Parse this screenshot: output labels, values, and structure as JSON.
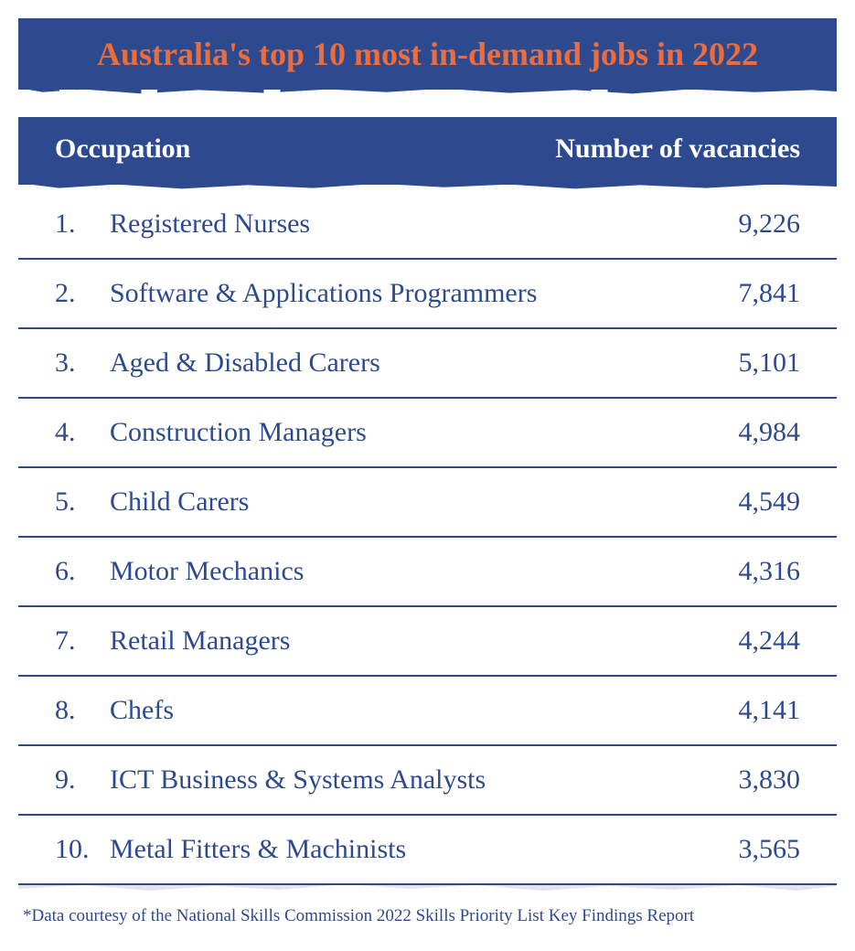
{
  "title": "Australia's top 10 most in-demand jobs in 2022",
  "colors": {
    "banner_bg": "#2e4a8f",
    "title_text": "#ed6c3c",
    "header_text": "#ffffff",
    "body_text": "#2e4a8f",
    "row_border": "#2e4a8f",
    "page_bg": "#ffffff"
  },
  "typography": {
    "title_fontsize": 36,
    "header_fontsize": 30,
    "row_fontsize": 30,
    "footnote_fontsize": 19,
    "font_family": "Georgia / serif"
  },
  "table": {
    "type": "table",
    "columns": [
      "Occupation",
      "Number of vacancies"
    ],
    "header": {
      "occupation_label": "Occupation",
      "vacancies_label": "Number of vacancies"
    },
    "rows": [
      {
        "rank": "1.",
        "occupation": "Registered Nurses",
        "vacancies": "9,226"
      },
      {
        "rank": "2.",
        "occupation": "Software & Applications Programmers",
        "vacancies": "7,841"
      },
      {
        "rank": "3.",
        "occupation": "Aged & Disabled Carers",
        "vacancies": "5,101"
      },
      {
        "rank": "4.",
        "occupation": "Construction Managers",
        "vacancies": "4,984"
      },
      {
        "rank": "5.",
        "occupation": "Child Carers",
        "vacancies": "4,549"
      },
      {
        "rank": "6.",
        "occupation": "Motor Mechanics",
        "vacancies": "4,316"
      },
      {
        "rank": "7.",
        "occupation": "Retail Managers",
        "vacancies": "4,244"
      },
      {
        "rank": "8.",
        "occupation": "Chefs",
        "vacancies": "4,141"
      },
      {
        "rank": "9.",
        "occupation": "ICT Business & Systems Analysts",
        "vacancies": "3,830"
      },
      {
        "rank": "10.",
        "occupation": "Metal Fitters & Machinists",
        "vacancies": "3,565"
      }
    ]
  },
  "footnote": "*Data courtesy of the National Skills Commission 2022 Skills Priority List Key Findings Report"
}
